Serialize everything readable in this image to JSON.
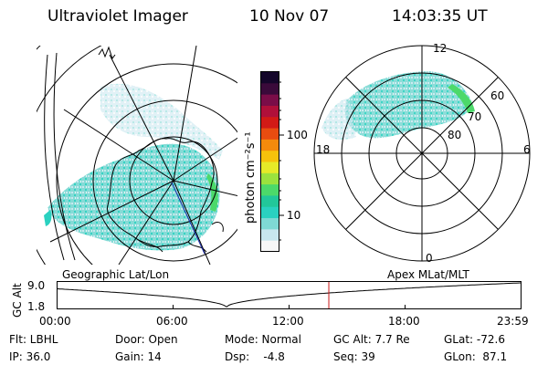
{
  "header": {
    "instrument": "Ultraviolet Imager",
    "date": "10 Nov 07",
    "time": "14:03:35 UT"
  },
  "colorbar": {
    "label": "photon cm⁻²s⁻¹",
    "ticks": [
      "100",
      "10"
    ],
    "scale": "log",
    "colors": [
      "#f7f7f7",
      "#c8e6ee",
      "#7fd9d4",
      "#2ad1c0",
      "#22c79a",
      "#4cd96a",
      "#9be23e",
      "#e6ea28",
      "#f6c20c",
      "#f48a0c",
      "#e84c10",
      "#d21a16",
      "#b0103a",
      "#7a0d48",
      "#3a0a3a",
      "#14062a"
    ]
  },
  "left_map": {
    "caption": "Geographic Lat/Lon"
  },
  "right_map": {
    "caption": "Apex MLat/MLT",
    "mlt_labels": {
      "top": "12",
      "left": "18",
      "right": "6",
      "bottom": "0"
    },
    "mlat_labels": [
      "60",
      "70",
      "80"
    ]
  },
  "altitude_plot": {
    "ylabel": "GC Alt",
    "yticks": [
      "9.0",
      "1.8"
    ],
    "xticks": [
      "00:00",
      "06:00",
      "12:00",
      "18:00",
      "23:59"
    ],
    "current_time_hours": 14.06,
    "marker_color": "#c81414"
  },
  "status": {
    "flt": "Flt: LBHL",
    "ip": "IP: 36.0",
    "door": "Door: Open",
    "gain": "Gain: 14",
    "mode": "Mode: Normal",
    "dsp": "Dsp:    -4.8",
    "gc_alt": "GC Alt: 7.7 Re",
    "seq": "Seq: 39",
    "glat": "GLat: -72.6",
    "glon": "GLon:  87.1"
  }
}
